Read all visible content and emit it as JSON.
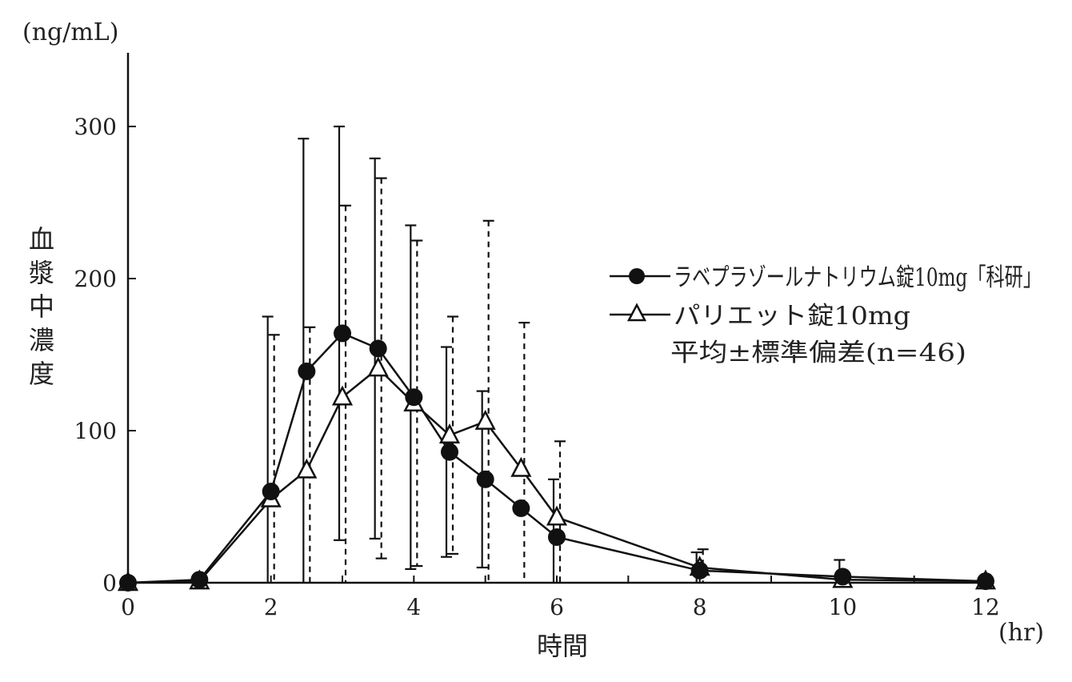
{
  "chart_data": {
    "type": "line",
    "y_unit": "(ng/mL)",
    "x_unit": "(hr)",
    "ylabel": "血漿中濃度",
    "xlabel": "時間",
    "xlim": [
      0,
      12
    ],
    "ylim": [
      0,
      300
    ],
    "x_ticks": [
      0,
      2,
      4,
      6,
      8,
      10,
      12
    ],
    "y_ticks": [
      0,
      100,
      200,
      300
    ],
    "grid": false,
    "legend_position": "right",
    "legend_note": "平均±標準偏差(n=46)",
    "series": [
      {
        "name": "ラベプラゾールナトリウム錠10mg「科研」",
        "marker": "filled-circle",
        "error_style": "solid",
        "x": [
          0,
          1,
          2,
          2.5,
          3,
          3.5,
          4,
          4.5,
          5,
          5.5,
          6,
          8,
          10,
          12
        ],
        "y": [
          0,
          2,
          60,
          139,
          164,
          154,
          122,
          86,
          68,
          49,
          30,
          8,
          4,
          1
        ],
        "error": [
          0,
          0,
          115,
          153,
          136,
          125,
          113,
          69,
          58,
          0,
          38,
          12,
          11,
          0
        ]
      },
      {
        "name": "パリエット錠10mg",
        "marker": "open-triangle",
        "error_style": "dashed",
        "x": [
          0,
          1,
          2,
          2.5,
          3,
          3.5,
          4,
          4.5,
          5,
          5.5,
          6,
          8,
          10,
          12
        ],
        "y": [
          0,
          1,
          55,
          74,
          122,
          141,
          118,
          97,
          106,
          75,
          43,
          10,
          2,
          1
        ],
        "error": [
          0,
          0,
          108,
          94,
          126,
          125,
          107,
          78,
          132,
          96,
          50,
          12,
          0,
          0
        ]
      }
    ]
  }
}
